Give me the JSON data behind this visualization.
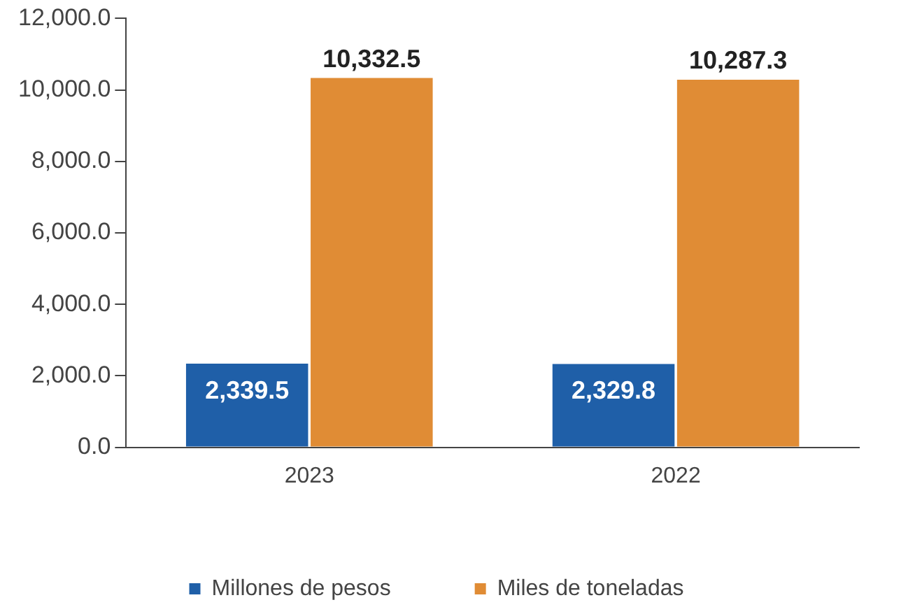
{
  "chart_data": {
    "type": "bar",
    "categories": [
      "2023",
      "2022"
    ],
    "series": [
      {
        "name": "Millones de pesos",
        "color": "#1f5fa8",
        "values": [
          2339.5,
          2329.8
        ],
        "value_labels": [
          "2,339.5",
          "2,329.8"
        ]
      },
      {
        "name": "Miles de toneladas",
        "color": "#e08c35",
        "values": [
          10332.5,
          10287.3
        ],
        "value_labels": [
          "10,332.5",
          "10,287.3"
        ]
      }
    ],
    "ylim": [
      0,
      12000
    ],
    "yticks": [
      {
        "value": 0,
        "label": "0.0"
      },
      {
        "value": 2000,
        "label": "2,000.0"
      },
      {
        "value": 4000,
        "label": "4,000.0"
      },
      {
        "value": 6000,
        "label": "6,000.0"
      },
      {
        "value": 8000,
        "label": "8,000.0"
      },
      {
        "value": 10000,
        "label": "10,000.0"
      },
      {
        "value": 12000,
        "label": "12,000.0"
      }
    ],
    "grid": false,
    "legend": "bottom"
  }
}
